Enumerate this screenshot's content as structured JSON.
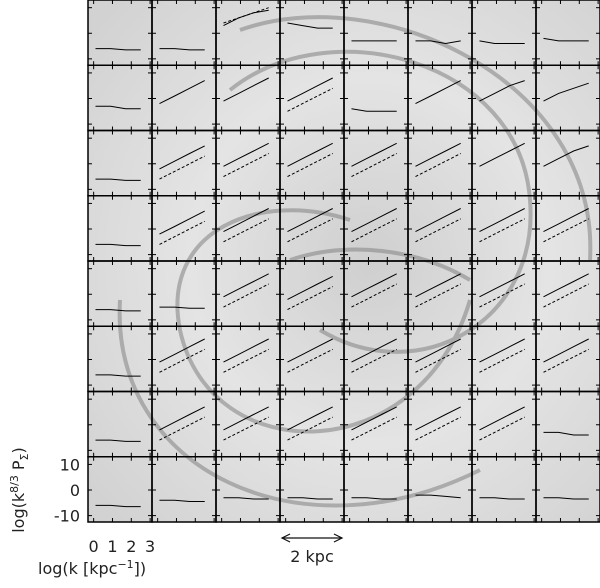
{
  "chart_data": {
    "type": "line",
    "xlim": [
      -0.3,
      3.1
    ],
    "ylim": [
      -12.5,
      13
    ],
    "xticks": [
      0,
      1,
      2,
      3
    ],
    "yticks": [
      10,
      0,
      -10
    ],
    "ylabel": [
      "log(k",
      "8/3",
      " P",
      "Σ",
      ")"
    ],
    "xlabel": [
      "log(k [kpc",
      "−1",
      "])"
    ],
    "scale_label": "2 kpc",
    "x": [
      0.1,
      0.9,
      1.7,
      2.5
    ],
    "panels": [
      [
        {
          "solid": [
            -6,
            -6,
            -6.5,
            -6.5
          ]
        },
        {
          "solid": [
            -6,
            -6,
            -6.5,
            -6.5
          ]
        },
        {
          "solid": [
            3,
            6,
            8,
            9
          ],
          "dashed": [
            4,
            6,
            8,
            10
          ]
        },
        {
          "solid": [
            4,
            3,
            2,
            2
          ]
        },
        {
          "solid": [
            -3,
            -3,
            -3,
            -3
          ]
        },
        {
          "solid": [
            -3,
            -3,
            -4,
            -3
          ]
        },
        {
          "solid": [
            -3,
            -4,
            -4,
            -4
          ]
        },
        {
          "solid": [
            -2,
            -3,
            -3,
            -3
          ]
        }
      ],
      [
        {
          "solid": [
            -3,
            -3,
            -4,
            -4
          ]
        },
        {
          "solid": [
            -2,
            1,
            4,
            7
          ]
        },
        {
          "solid": [
            -1,
            2,
            5,
            8
          ]
        },
        {
          "solid": [
            -1,
            2,
            5,
            8
          ],
          "dashed": [
            -5,
            -2,
            1,
            4
          ]
        },
        {
          "solid": [
            -4,
            -5,
            -5,
            -5
          ]
        },
        {
          "solid": [
            -2,
            1,
            4,
            7
          ]
        },
        {
          "solid": [
            -1,
            2,
            5,
            7
          ]
        },
        {
          "solid": [
            -1,
            2,
            4,
            6
          ]
        }
      ],
      [
        {
          "solid": [
            -6,
            -6,
            -6.5,
            -6.5
          ]
        },
        {
          "solid": [
            -2,
            1,
            4,
            7
          ],
          "dashed": [
            -6,
            -3,
            0,
            3
          ]
        },
        {
          "solid": [
            -1,
            2,
            5,
            8
          ],
          "dashed": [
            -5,
            -2,
            1,
            4
          ]
        },
        {
          "solid": [
            -1,
            2,
            5,
            8
          ],
          "dashed": [
            -5,
            -2,
            1,
            4
          ]
        },
        {
          "solid": [
            -1,
            2,
            5,
            8
          ],
          "dashed": [
            -5,
            -2,
            1,
            4
          ]
        },
        {
          "solid": [
            -1,
            2,
            5,
            8
          ],
          "dashed": [
            -5,
            -2,
            1,
            4
          ]
        },
        {
          "solid": [
            -1,
            2,
            5,
            8
          ]
        },
        {
          "solid": [
            -1,
            2,
            5,
            7
          ]
        }
      ],
      [
        {
          "solid": [
            -6,
            -6,
            -6.5,
            -6.5
          ]
        },
        {
          "solid": [
            -2,
            1,
            4,
            7
          ],
          "dashed": [
            -6,
            -3,
            0,
            3
          ]
        },
        {
          "solid": [
            -1,
            2,
            5,
            8
          ],
          "dashed": [
            -5,
            -2,
            1,
            4
          ]
        },
        {
          "solid": [
            -1,
            2,
            5,
            8
          ],
          "dashed": [
            -5,
            -2,
            1,
            4
          ]
        },
        {
          "solid": [
            -1,
            2,
            5,
            8
          ],
          "dashed": [
            -5,
            -2,
            1,
            4
          ]
        },
        {
          "solid": [
            -1,
            2,
            5,
            8
          ],
          "dashed": [
            -5,
            -2,
            1,
            4
          ]
        },
        {
          "solid": [
            -1,
            2,
            5,
            8
          ],
          "dashed": [
            -5,
            -2,
            1,
            4
          ]
        },
        {
          "solid": [
            -1,
            2,
            5,
            8
          ],
          "dashed": [
            -5,
            -2,
            1,
            4
          ]
        }
      ],
      [
        {
          "solid": [
            -6,
            -6,
            -6.5,
            -6.5
          ]
        },
        {
          "solid": [
            -5,
            -5,
            -5.5,
            -5.5
          ]
        },
        {
          "solid": [
            -1,
            2,
            5,
            8
          ],
          "dashed": [
            -5,
            -2,
            1,
            4
          ]
        },
        {
          "solid": [
            -2,
            1,
            4,
            7
          ],
          "dashed": [
            -6,
            -3,
            0,
            3
          ]
        },
        {
          "solid": [
            -1,
            2,
            5,
            8
          ],
          "dashed": [
            -5,
            -2,
            1,
            4
          ]
        },
        {
          "solid": [
            -1,
            2,
            5,
            8
          ],
          "dashed": [
            -5,
            -2,
            1,
            4
          ]
        },
        {
          "solid": [
            -1,
            2,
            5,
            8
          ],
          "dashed": [
            -5,
            -2,
            1,
            4
          ]
        },
        {
          "solid": [
            -1,
            2,
            5,
            8
          ],
          "dashed": [
            -5,
            -2,
            1,
            4
          ]
        }
      ],
      [
        {
          "solid": [
            -6,
            -6,
            -6.5,
            -6.5
          ]
        },
        {
          "solid": [
            -1,
            2,
            5,
            8
          ],
          "dashed": [
            -5,
            -2,
            1,
            4
          ]
        },
        {
          "solid": [
            -1,
            2,
            5,
            8
          ],
          "dashed": [
            -5,
            -2,
            1,
            4
          ]
        },
        {
          "solid": [
            -1,
            2,
            5,
            8
          ],
          "dashed": [
            -5,
            -2,
            1,
            4
          ]
        },
        {
          "solid": [
            -1,
            2,
            5,
            8
          ],
          "dashed": [
            -5,
            -2,
            1,
            4
          ]
        },
        {
          "solid": [
            -1,
            2,
            5,
            8
          ],
          "dashed": [
            -5,
            -2,
            1,
            4
          ]
        },
        {
          "solid": [
            -1,
            2,
            5,
            8
          ],
          "dashed": [
            -5,
            -2,
            1,
            4
          ]
        },
        {
          "solid": [
            -1,
            2,
            5,
            8
          ],
          "dashed": [
            -5,
            -2,
            1,
            4
          ]
        }
      ],
      [
        {
          "solid": [
            -6,
            -6,
            -6.5,
            -6.5
          ]
        },
        {
          "solid": [
            -2,
            1,
            4,
            7
          ],
          "dashed": [
            -6,
            -3,
            0,
            3
          ]
        },
        {
          "solid": [
            -2,
            1,
            4,
            7
          ],
          "dashed": [
            -6,
            -3,
            0,
            3
          ]
        },
        {
          "solid": [
            -2,
            1,
            4,
            7
          ],
          "dashed": [
            -6,
            -3,
            0,
            3
          ]
        },
        {
          "solid": [
            -2,
            1,
            4,
            7
          ],
          "dashed": [
            -6,
            -3,
            0,
            3
          ]
        },
        {
          "solid": [
            -2,
            1,
            4,
            7
          ],
          "dashed": [
            -6,
            -3,
            0,
            3
          ]
        },
        {
          "solid": [
            -2,
            1,
            4,
            7
          ],
          "dashed": [
            -6,
            -3,
            0,
            3
          ]
        },
        {
          "solid": [
            -3,
            -3,
            -4,
            -4
          ]
        }
      ],
      [
        {
          "solid": [
            -6,
            -6,
            -6.5,
            -6.5
          ]
        },
        {
          "solid": [
            -4,
            -4,
            -4.5,
            -4.5
          ]
        },
        {
          "solid": [
            -3,
            -3,
            -3.5,
            -3.5
          ]
        },
        {
          "solid": [
            -3,
            -3,
            -3.5,
            -3.5
          ]
        },
        {
          "solid": [
            -3,
            -3,
            -3.5,
            -3.5
          ]
        },
        {
          "solid": [
            -2,
            -2,
            -2.5,
            -3
          ]
        },
        {
          "solid": [
            -3,
            -3,
            -3.5,
            -3.5
          ]
        },
        {
          "solid": [
            -3,
            -3,
            -3.5,
            -3.5
          ]
        }
      ]
    ]
  }
}
